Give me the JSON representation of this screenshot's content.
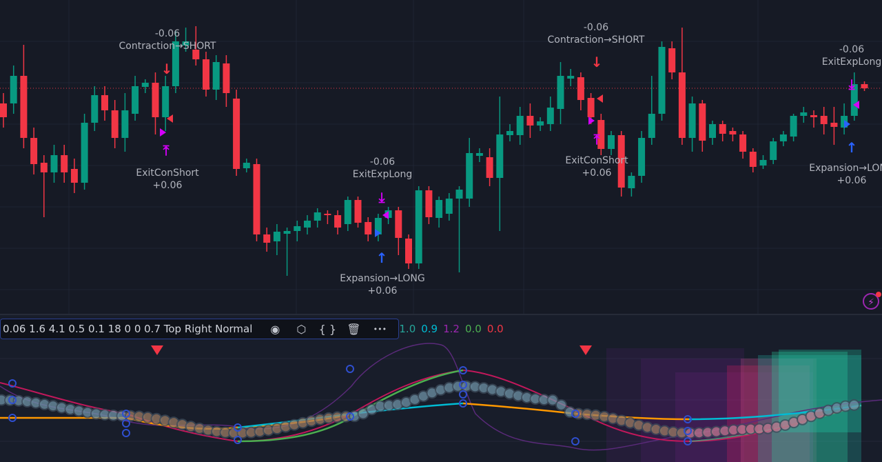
{
  "colors": {
    "up": "#089981",
    "down": "#f23645",
    "signal_magenta": "#d500f9",
    "signal_blue": "#2962ff",
    "ref_line": "#f23645"
  },
  "price_chart": {
    "candle_fields": [
      "open",
      "high",
      "low",
      "close"
    ],
    "candles": [
      [
        350,
        365,
        315,
        330
      ],
      [
        350,
        405,
        335,
        390
      ],
      [
        390,
        435,
        285,
        300
      ],
      [
        300,
        315,
        247,
        262
      ],
      [
        264,
        275,
        185,
        250
      ],
      [
        250,
        290,
        235,
        275
      ],
      [
        275,
        290,
        235,
        250
      ],
      [
        255,
        270,
        220,
        235
      ],
      [
        235,
        335,
        225,
        322
      ],
      [
        322,
        375,
        310,
        362
      ],
      [
        362,
        375,
        325,
        340
      ],
      [
        340,
        355,
        285,
        300
      ],
      [
        300,
        365,
        280,
        340
      ],
      [
        335,
        390,
        325,
        375
      ],
      [
        374,
        385,
        365,
        380
      ],
      [
        380,
        395,
        305,
        330
      ],
      [
        330,
        390,
        310,
        375
      ],
      [
        375,
        455,
        365,
        440
      ],
      [
        434,
        460,
        425,
        440
      ],
      [
        428,
        462,
        405,
        414
      ],
      [
        414,
        425,
        360,
        370
      ],
      [
        370,
        420,
        355,
        410
      ],
      [
        408,
        420,
        345,
        365
      ],
      [
        357,
        370,
        245,
        255
      ],
      [
        256,
        270,
        250,
        264
      ],
      [
        262,
        270,
        150,
        160
      ],
      [
        160,
        170,
        135,
        148
      ],
      [
        150,
        175,
        130,
        164
      ],
      [
        161,
        170,
        100,
        165
      ],
      [
        165,
        180,
        150,
        172
      ],
      [
        170,
        188,
        160,
        180
      ],
      [
        180,
        198,
        170,
        192
      ],
      [
        190,
        195,
        175,
        188
      ],
      [
        188,
        195,
        160,
        170
      ],
      [
        175,
        215,
        165,
        210
      ],
      [
        210,
        215,
        170,
        177
      ],
      [
        178,
        185,
        150,
        160
      ],
      [
        160,
        190,
        150,
        184
      ],
      [
        184,
        200,
        175,
        195
      ],
      [
        195,
        200,
        130,
        155
      ],
      [
        154,
        160,
        110,
        118
      ],
      [
        118,
        230,
        110,
        224
      ],
      [
        224,
        230,
        175,
        185
      ],
      [
        184,
        215,
        170,
        210
      ],
      [
        190,
        220,
        180,
        212
      ],
      [
        212,
        230,
        105,
        225
      ],
      [
        212,
        300,
        200,
        278
      ],
      [
        274,
        285,
        265,
        278
      ],
      [
        272,
        285,
        230,
        242
      ],
      [
        242,
        360,
        165,
        305
      ],
      [
        304,
        320,
        295,
        310
      ],
      [
        304,
        345,
        290,
        332
      ],
      [
        332,
        350,
        300,
        318
      ],
      [
        318,
        330,
        310,
        324
      ],
      [
        320,
        360,
        310,
        344
      ],
      [
        342,
        410,
        320,
        390
      ],
      [
        386,
        400,
        375,
        390
      ],
      [
        388,
        395,
        340,
        355
      ],
      [
        358,
        365,
        320,
        330
      ],
      [
        326,
        335,
        275,
        284
      ],
      [
        284,
        310,
        275,
        304
      ],
      [
        304,
        310,
        215,
        228
      ],
      [
        227,
        250,
        215,
        245
      ],
      [
        245,
        310,
        235,
        300
      ],
      [
        300,
        390,
        290,
        335
      ],
      [
        335,
        440,
        325,
        432
      ],
      [
        430,
        440,
        385,
        395
      ],
      [
        395,
        460,
        290,
        300
      ],
      [
        300,
        360,
        280,
        350
      ],
      [
        350,
        355,
        280,
        296
      ],
      [
        300,
        325,
        290,
        320
      ],
      [
        320,
        325,
        295,
        306
      ],
      [
        310,
        315,
        295,
        305
      ],
      [
        305,
        310,
        270,
        280
      ],
      [
        280,
        285,
        250,
        258
      ],
      [
        260,
        275,
        255,
        268
      ],
      [
        268,
        300,
        262,
        295
      ],
      [
        295,
        310,
        288,
        305
      ],
      [
        302,
        335,
        295,
        332
      ],
      [
        332,
        345,
        322,
        337
      ],
      [
        333,
        340,
        315,
        330
      ],
      [
        332,
        345,
        305,
        320
      ],
      [
        322,
        345,
        290,
        316
      ],
      [
        315,
        350,
        305,
        332
      ],
      [
        332,
        395,
        325,
        378
      ],
      [
        378,
        382,
        368,
        372
      ]
    ],
    "reference_price": 372,
    "annotations": [
      {
        "top": "-0.06",
        "bottom": "Contraction→SHORT",
        "arrow": "↓",
        "arrow_color": "#f23645"
      },
      {
        "top": "ExitConShort",
        "bottom": "+0.06",
        "arrow": "⤒",
        "arrow_color": "#d500f9"
      },
      {
        "top": "-0.06",
        "bottom": "ExitExpLong",
        "arrow": "⤓",
        "arrow_color": "#d500f9"
      },
      {
        "top": "Expansion→LONG",
        "bottom": "+0.06",
        "arrow": "↑",
        "arrow_color": "#2962ff"
      },
      {
        "top": "-0.06",
        "bottom": "Contraction→SHORT",
        "arrow": "↓",
        "arrow_color": "#f23645"
      },
      {
        "top": "ExitConShort",
        "bottom": "+0.06",
        "arrow": "⤒",
        "arrow_color": "#d500f9"
      },
      {
        "top": "-0.06",
        "bottom": "ExitExpLong",
        "arrow": "⤓",
        "arrow_color": "#d500f9"
      },
      {
        "top": "Expansion→LONG",
        "bottom": "+0.06",
        "arrow": "↑",
        "arrow_color": "#2962ff"
      }
    ]
  },
  "indicator": {
    "params": "0.06 1.6 4.1 0.5 0.1 18 0 0 0.7 Top Right Normal",
    "toolbar": [
      {
        "icon": "eye-icon",
        "glyph": "◉"
      },
      {
        "icon": "settings-icon",
        "glyph": "⬡"
      },
      {
        "icon": "source-code-icon",
        "glyph": "{ }"
      },
      {
        "icon": "delete-icon",
        "glyph": "🗑"
      },
      {
        "icon": "more-icon",
        "glyph": "•••"
      }
    ],
    "values": [
      {
        "text": "1.0",
        "color": "#26a69a"
      },
      {
        "text": "0.9",
        "color": "#00bcd4"
      },
      {
        "text": "1.2",
        "color": "#9c27b0"
      },
      {
        "text": "0.0",
        "color": "#4caf50"
      },
      {
        "text": "0.0",
        "color": "#f23645"
      }
    ]
  },
  "flash_icon": "lightning-icon"
}
